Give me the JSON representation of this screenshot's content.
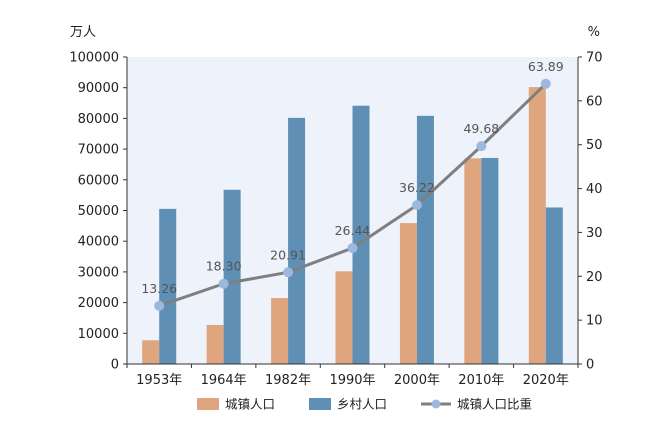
{
  "chart_data": {
    "type": "bar",
    "title": "",
    "xlabel": "",
    "categories": [
      "1953年",
      "1964年",
      "1982年",
      "1990年",
      "2000年",
      "2010年",
      "2020年"
    ],
    "series": [
      {
        "name": "城镇人口",
        "kind": "bar",
        "axis": "left",
        "color": "#dea57f",
        "values": [
          7726,
          12710,
          21480,
          30195,
          45906,
          66978,
          90199
        ]
      },
      {
        "name": "乡村人口",
        "kind": "bar",
        "axis": "left",
        "color": "#5f8fb4",
        "values": [
          50534,
          56748,
          80174,
          84138,
          80837,
          67113,
          50979
        ]
      },
      {
        "name": "城镇人口比重",
        "kind": "line",
        "axis": "right",
        "color": "#7f7f7f",
        "marker_color": "#9db8de",
        "values": [
          13.26,
          18.3,
          20.91,
          26.44,
          36.22,
          49.68,
          63.89
        ],
        "labels": [
          "13.26",
          "18.30",
          "20.91",
          "26.44",
          "36.22",
          "49.68",
          "63.89"
        ]
      }
    ],
    "y_left": {
      "unit": "万人",
      "ylim": [
        0,
        100000
      ],
      "ticks": [
        "0",
        "10000",
        "20000",
        "30000",
        "40000",
        "50000",
        "60000",
        "70000",
        "80000",
        "90000",
        "100000"
      ]
    },
    "y_right": {
      "unit": "%",
      "ylim": [
        0,
        70
      ],
      "ticks": [
        "0",
        "10",
        "20",
        "30",
        "40",
        "50",
        "60",
        "70"
      ]
    },
    "plot_background": "#edf2fb",
    "grid": false,
    "legend_position": "bottom"
  }
}
